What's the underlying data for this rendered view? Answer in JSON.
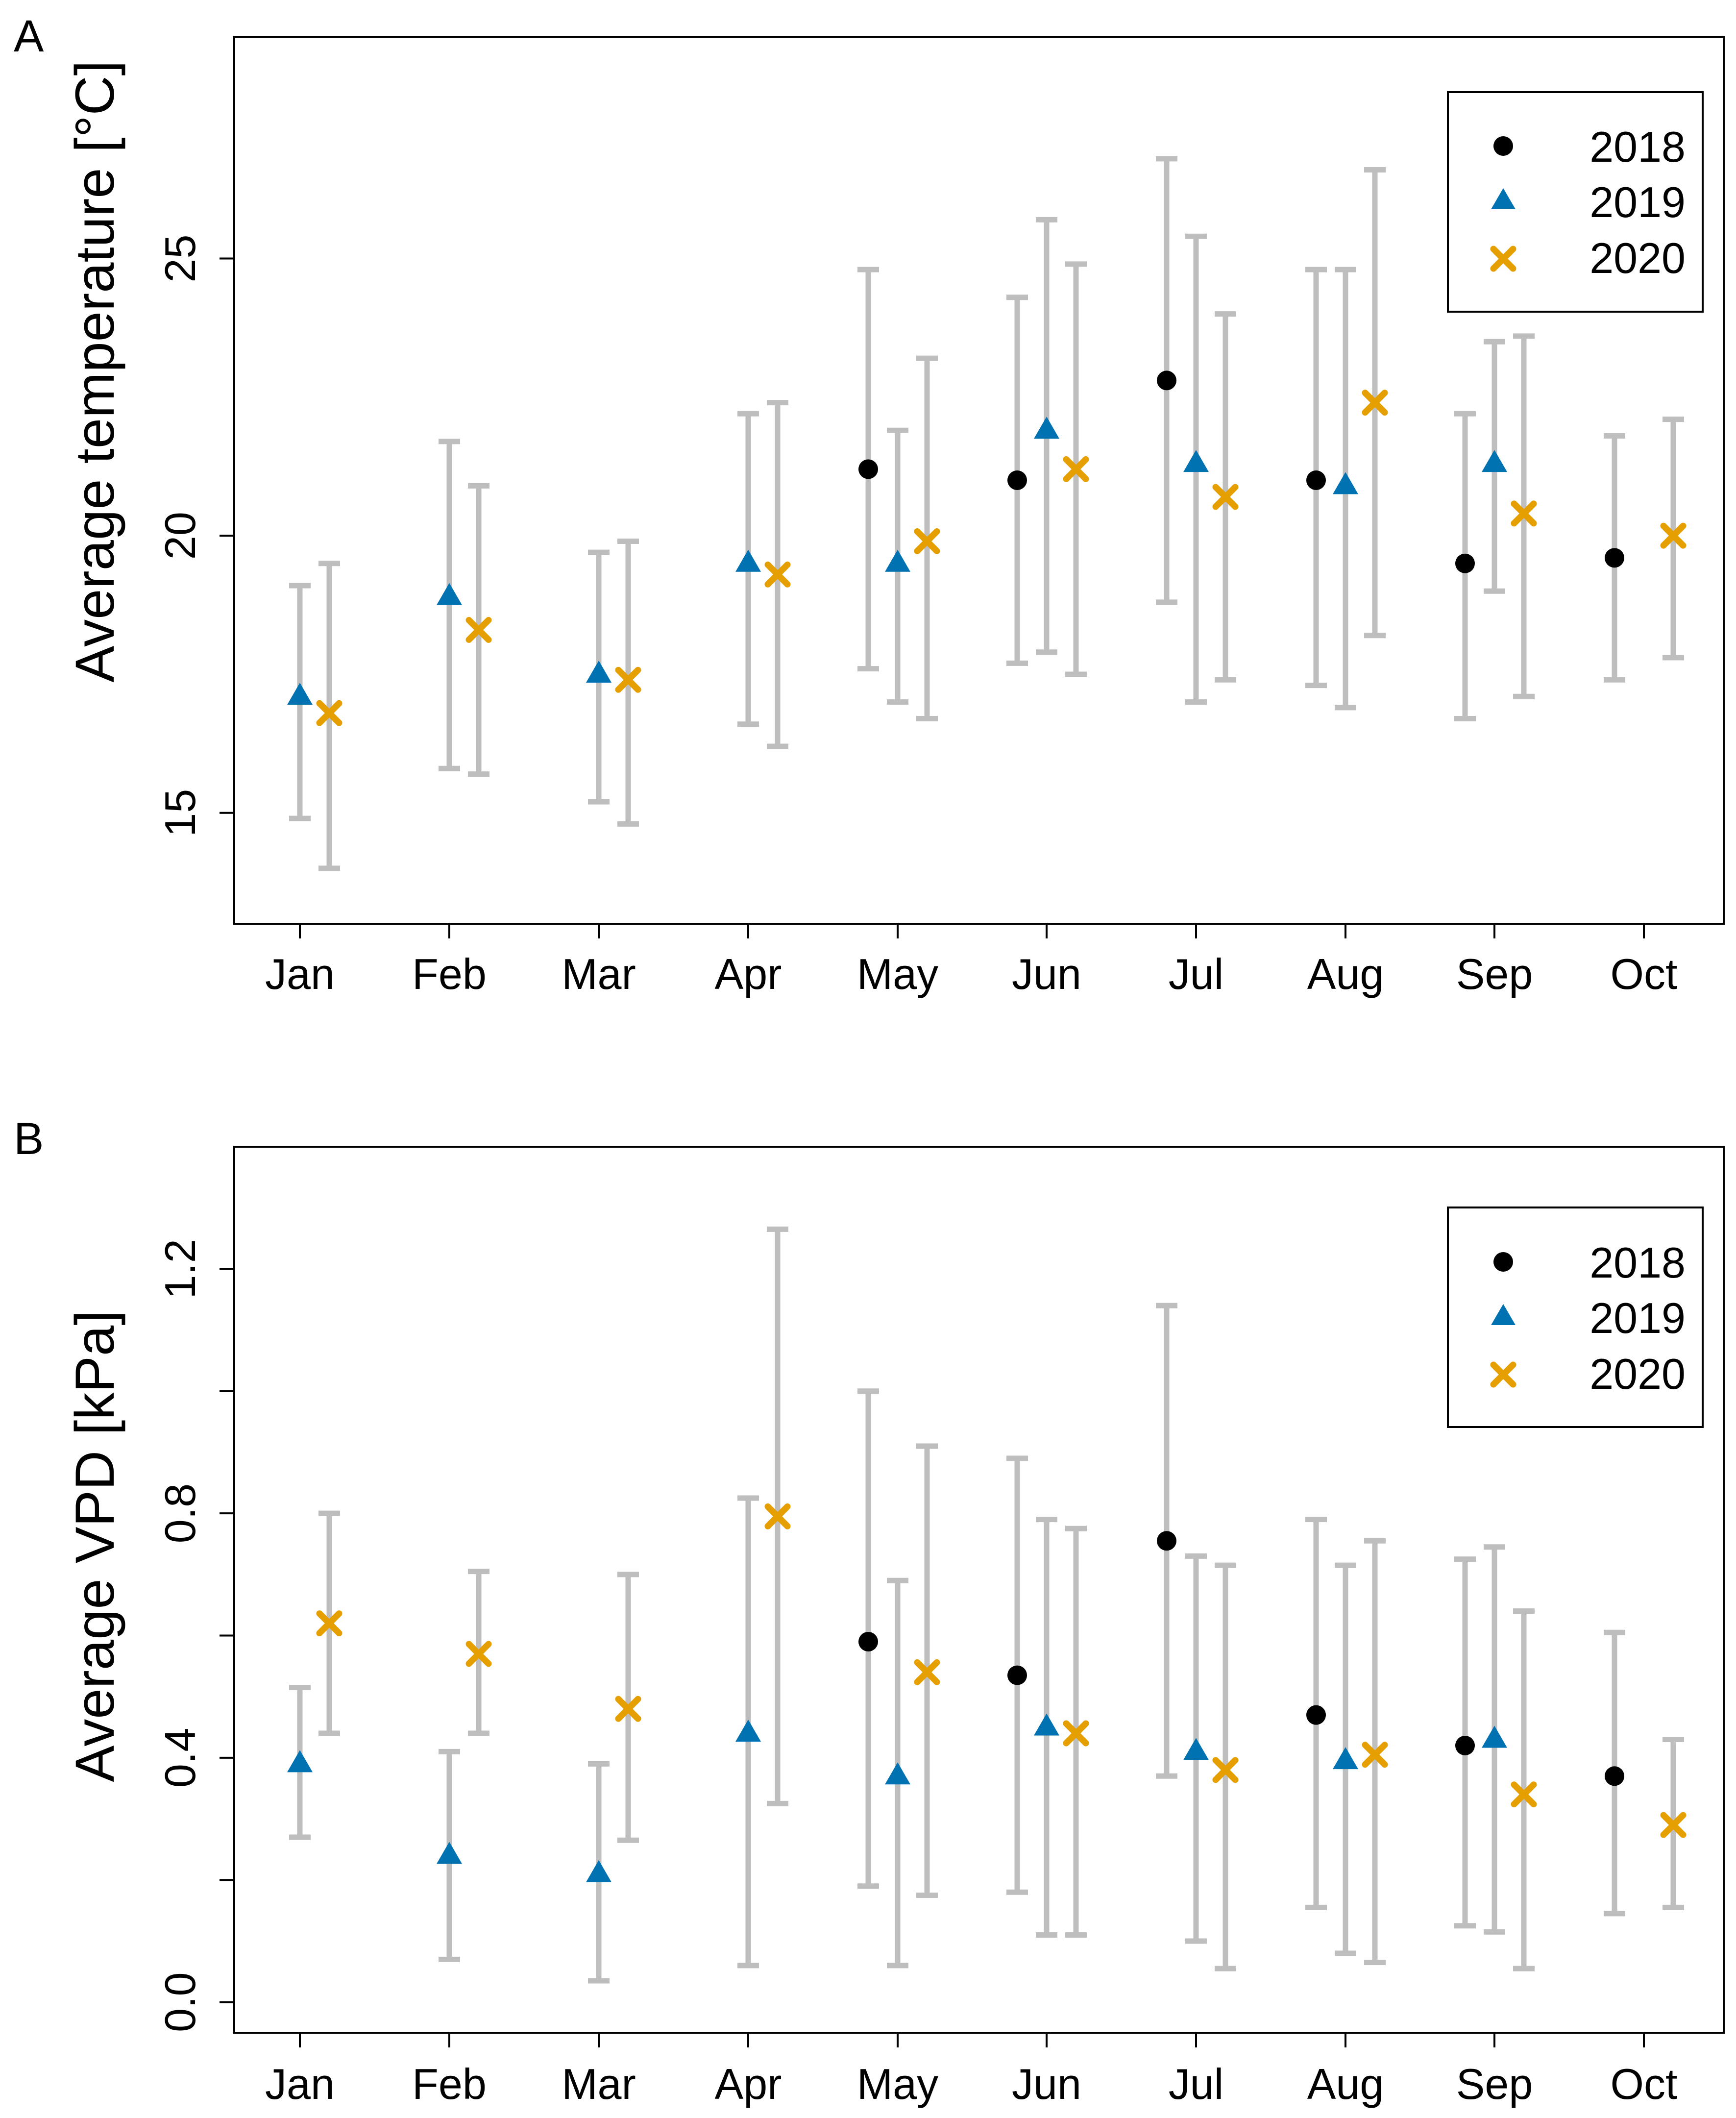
{
  "colors": {
    "s2018": "#000000",
    "s2019": "#0072B2",
    "s2020": "#E69F00",
    "errorbar": "#BEBEBE"
  },
  "chart_data": [
    {
      "panel_label": "A",
      "type": "scatter",
      "title": "",
      "ylabel": "Average temperature [°C]",
      "xlabel": "",
      "categories": [
        "Jan",
        "Feb",
        "Mar",
        "Apr",
        "May",
        "Jun",
        "Jul",
        "Aug",
        "Sep",
        "Oct"
      ],
      "ylim": [
        13,
        29
      ],
      "yticks": [
        15,
        20,
        25
      ],
      "ytick_labels": [
        "15",
        "20",
        "25"
      ],
      "legend_position": "top-right",
      "legend": [
        "2018",
        "2019",
        "2020"
      ],
      "series": [
        {
          "name": "2018",
          "marker": "circle",
          "values": [
            null,
            null,
            null,
            null,
            21.2,
            21.0,
            22.8,
            21.0,
            19.5,
            19.6
          ],
          "lower": [
            null,
            null,
            null,
            null,
            17.6,
            17.7,
            18.8,
            17.3,
            16.7,
            17.4
          ],
          "upper": [
            null,
            null,
            null,
            null,
            24.8,
            24.3,
            26.8,
            24.8,
            22.2,
            21.8
          ]
        },
        {
          "name": "2019",
          "marker": "triangle",
          "values": [
            17.1,
            18.9,
            17.5,
            19.5,
            19.5,
            21.9,
            21.3,
            20.9,
            21.3,
            null
          ],
          "lower": [
            14.9,
            15.8,
            15.2,
            16.6,
            17.0,
            17.9,
            17.0,
            16.9,
            19.0,
            null
          ],
          "upper": [
            19.1,
            21.7,
            19.7,
            22.2,
            21.9,
            25.7,
            25.4,
            24.8,
            23.5,
            null
          ]
        },
        {
          "name": "2020",
          "marker": "cross",
          "values": [
            16.8,
            18.3,
            17.4,
            19.3,
            19.9,
            21.2,
            20.7,
            22.4,
            20.4,
            20.0
          ],
          "lower": [
            14.0,
            15.7,
            14.8,
            16.2,
            16.7,
            17.5,
            17.4,
            18.2,
            17.1,
            17.8
          ],
          "upper": [
            19.5,
            20.9,
            19.9,
            22.4,
            23.2,
            24.9,
            24.0,
            26.6,
            23.6,
            22.1
          ]
        }
      ]
    },
    {
      "panel_label": "B",
      "type": "scatter",
      "title": "",
      "ylabel": "Average VPD [kPa]",
      "xlabel": "",
      "categories": [
        "Jan",
        "Feb",
        "Mar",
        "Apr",
        "May",
        "Jun",
        "Jul",
        "Aug",
        "Sep",
        "Oct"
      ],
      "ylim": [
        -0.05,
        1.4
      ],
      "yticks": [
        0.0,
        0.4,
        0.8,
        1.2
      ],
      "ytick_labels": [
        "0.0",
        "0.4",
        "0.8",
        "1.2"
      ],
      "yticks_unlabeled": [
        0.2,
        0.6,
        1.0
      ],
      "legend_position": "top-right",
      "legend": [
        "2018",
        "2019",
        "2020"
      ],
      "series": [
        {
          "name": "2018",
          "marker": "circle",
          "values": [
            null,
            null,
            null,
            null,
            0.59,
            0.535,
            0.755,
            0.47,
            0.42,
            0.37
          ],
          "lower": [
            null,
            null,
            null,
            null,
            0.19,
            0.18,
            0.37,
            0.155,
            0.125,
            0.145
          ],
          "upper": [
            null,
            null,
            null,
            null,
            1.0,
            0.89,
            1.14,
            0.79,
            0.725,
            0.605
          ]
        },
        {
          "name": "2019",
          "marker": "triangle",
          "values": [
            0.39,
            0.24,
            0.21,
            0.44,
            0.37,
            0.45,
            0.41,
            0.395,
            0.43,
            null
          ],
          "lower": [
            0.27,
            0.07,
            0.035,
            0.06,
            0.06,
            0.11,
            0.1,
            0.08,
            0.115,
            null
          ],
          "upper": [
            0.515,
            0.41,
            0.39,
            0.825,
            0.69,
            0.79,
            0.73,
            0.715,
            0.745,
            null
          ]
        },
        {
          "name": "2020",
          "marker": "cross",
          "values": [
            0.62,
            0.57,
            0.48,
            0.795,
            0.54,
            0.44,
            0.38,
            0.405,
            0.34,
            0.29
          ],
          "lower": [
            0.44,
            0.44,
            0.265,
            0.325,
            0.175,
            0.11,
            0.055,
            0.065,
            0.055,
            0.155
          ],
          "upper": [
            0.8,
            0.705,
            0.7,
            1.265,
            0.91,
            0.775,
            0.715,
            0.755,
            0.64,
            0.43
          ]
        }
      ]
    }
  ]
}
